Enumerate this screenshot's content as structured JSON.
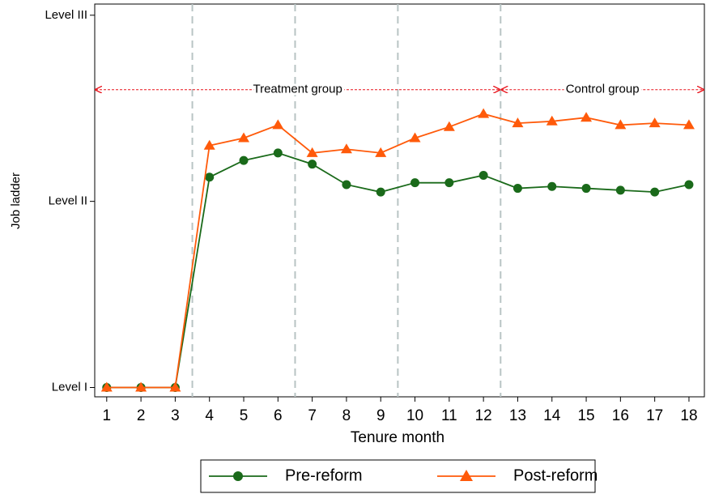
{
  "chart_data": {
    "type": "line",
    "x": [
      1,
      2,
      3,
      4,
      5,
      6,
      7,
      8,
      9,
      10,
      11,
      12,
      13,
      14,
      15,
      16,
      17,
      18
    ],
    "xticks": [
      1,
      2,
      3,
      4,
      5,
      6,
      7,
      8,
      9,
      10,
      11,
      12,
      13,
      14,
      15,
      16,
      17,
      18
    ],
    "xlim": [
      0.65,
      18.45
    ],
    "ylim": [
      0.95,
      3.06
    ],
    "yticks": [
      {
        "value": 1,
        "label": "Level I"
      },
      {
        "value": 2,
        "label": "Level II"
      },
      {
        "value": 3,
        "label": "Level III"
      }
    ],
    "xlabel": "Tenure month",
    "ylabel": "Job ladder",
    "vlines": [
      3.5,
      6.5,
      9.5,
      12.5
    ],
    "annotations": [
      {
        "text": "Treatment group",
        "x": [
          0.65,
          12.5
        ],
        "y": 2.6,
        "color": "#e8141c"
      },
      {
        "text": "Control group",
        "x": [
          12.5,
          18.45
        ],
        "y": 2.6,
        "color": "#e8141c"
      }
    ],
    "series": [
      {
        "name": "Pre-reform",
        "color": "#1a6a1a",
        "marker": "circle",
        "values": [
          1,
          1,
          1,
          2.13,
          2.22,
          2.26,
          2.2,
          2.09,
          2.05,
          2.1,
          2.1,
          2.14,
          2.07,
          2.08,
          2.07,
          2.06,
          2.05,
          2.09
        ]
      },
      {
        "name": "Post-reform",
        "color": "#ff5a0a",
        "marker": "triangle",
        "values": [
          1,
          1,
          1,
          2.3,
          2.34,
          2.41,
          2.26,
          2.28,
          2.26,
          2.34,
          2.4,
          2.47,
          2.42,
          2.43,
          2.45,
          2.41,
          2.42,
          2.41
        ]
      }
    ],
    "legend": "bottom"
  }
}
